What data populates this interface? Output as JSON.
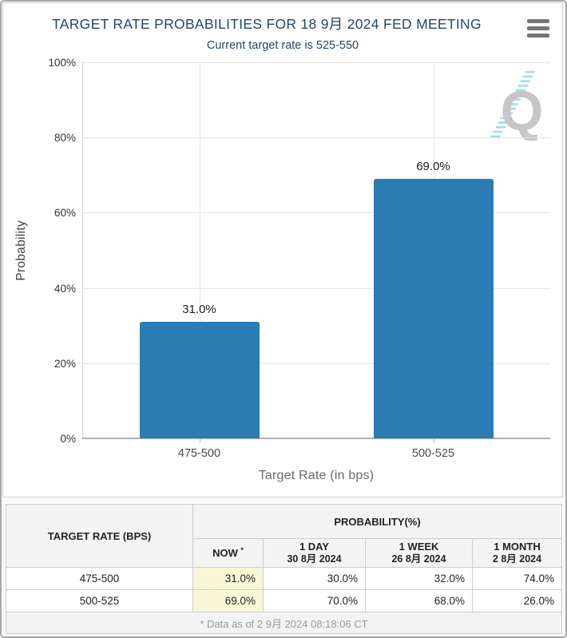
{
  "header": {
    "title": "TARGET RATE PROBABILITIES FOR 18 9月 2024 FED MEETING",
    "subtitle": "Current target rate is 525-550"
  },
  "colors": {
    "bar": "#2b7cb3",
    "title_text": "#24466e",
    "now_highlight": "#f8f8d8"
  },
  "chart_data": {
    "type": "bar",
    "title": "TARGET RATE PROBABILITIES FOR 18 9月 2024 FED MEETING",
    "subtitle": "Current target rate is 525-550",
    "categories": [
      "475-500",
      "500-525"
    ],
    "values": [
      31.0,
      69.0
    ],
    "value_labels": [
      "31.0%",
      "69.0%"
    ],
    "xlabel": "Target Rate (in bps)",
    "ylabel": "Probability",
    "ylim": [
      0,
      100
    ],
    "ytick_labels": [
      "0%",
      "20%",
      "40%",
      "60%",
      "80%",
      "100%"
    ],
    "grid": true,
    "legend": "none",
    "bar_color": "#2b7cb3"
  },
  "table": {
    "col_headers": {
      "rate": "TARGET RATE (BPS)",
      "probability_group": "PROBABILITY(%)",
      "now": "NOW",
      "now_asterisk": "*",
      "day": "1 DAY",
      "day_date": "30 8月 2024",
      "week": "1 WEEK",
      "week_date": "26 8月 2024",
      "month": "1 MONTH",
      "month_date": "2 8月 2024"
    },
    "rows": [
      {
        "rate": "475-500",
        "now": "31.0%",
        "day": "30.0%",
        "week": "32.0%",
        "month": "74.0%"
      },
      {
        "rate": "500-525",
        "now": "69.0%",
        "day": "70.0%",
        "week": "68.0%",
        "month": "26.0%"
      }
    ],
    "footnote": "* Data as of 2 9月 2024 08:18:06 CT"
  }
}
